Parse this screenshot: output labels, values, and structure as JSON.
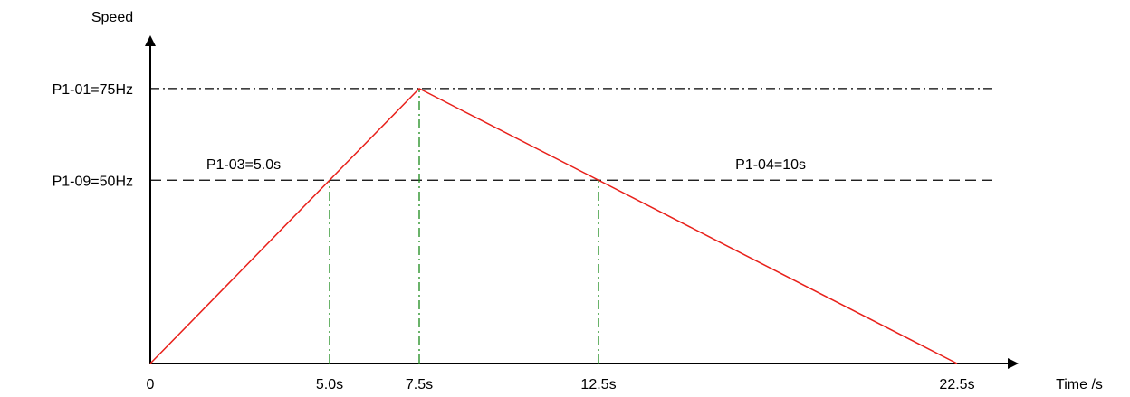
{
  "chart_data": {
    "type": "line",
    "title": "",
    "xlabel": "Time /s",
    "ylabel": "Speed",
    "xlim": [
      0,
      22.5
    ],
    "ylim": [
      0,
      75
    ],
    "grid": false,
    "legend": "none",
    "series": [
      {
        "x": [
          0,
          7.5,
          22.5
        ],
        "y": [
          0,
          75,
          0
        ],
        "color": "#e8201a"
      }
    ],
    "x_tick_labels": [
      {
        "x": 0,
        "label": "0"
      },
      {
        "x": 5.0,
        "label": "5.0s"
      },
      {
        "x": 7.5,
        "label": "7.5s"
      },
      {
        "x": 12.5,
        "label": "12.5s"
      },
      {
        "x": 22.5,
        "label": "22.5s"
      }
    ],
    "y_reference_lines": [
      {
        "y": 75,
        "label": "P1-01=75Hz",
        "style": "dash-dot",
        "color": "#000000"
      },
      {
        "y": 50,
        "label": "P1-09=50Hz",
        "style": "dashed",
        "color": "#000000"
      }
    ],
    "x_guides": [
      {
        "x": 5.0,
        "y": 50,
        "color": "#1a8a1a",
        "style": "dash-dot"
      },
      {
        "x": 7.5,
        "y": 75,
        "color": "#1a8a1a",
        "style": "dash-dot"
      },
      {
        "x": 12.5,
        "y": 50,
        "color": "#1a8a1a",
        "style": "dash-dot"
      }
    ],
    "annotations": [
      {
        "id": "accel",
        "text": "P1-03=5.0s",
        "x": 2.6,
        "y": 53
      },
      {
        "id": "decel",
        "text": "P1-04=10s",
        "x": 17.3,
        "y": 53
      }
    ]
  }
}
